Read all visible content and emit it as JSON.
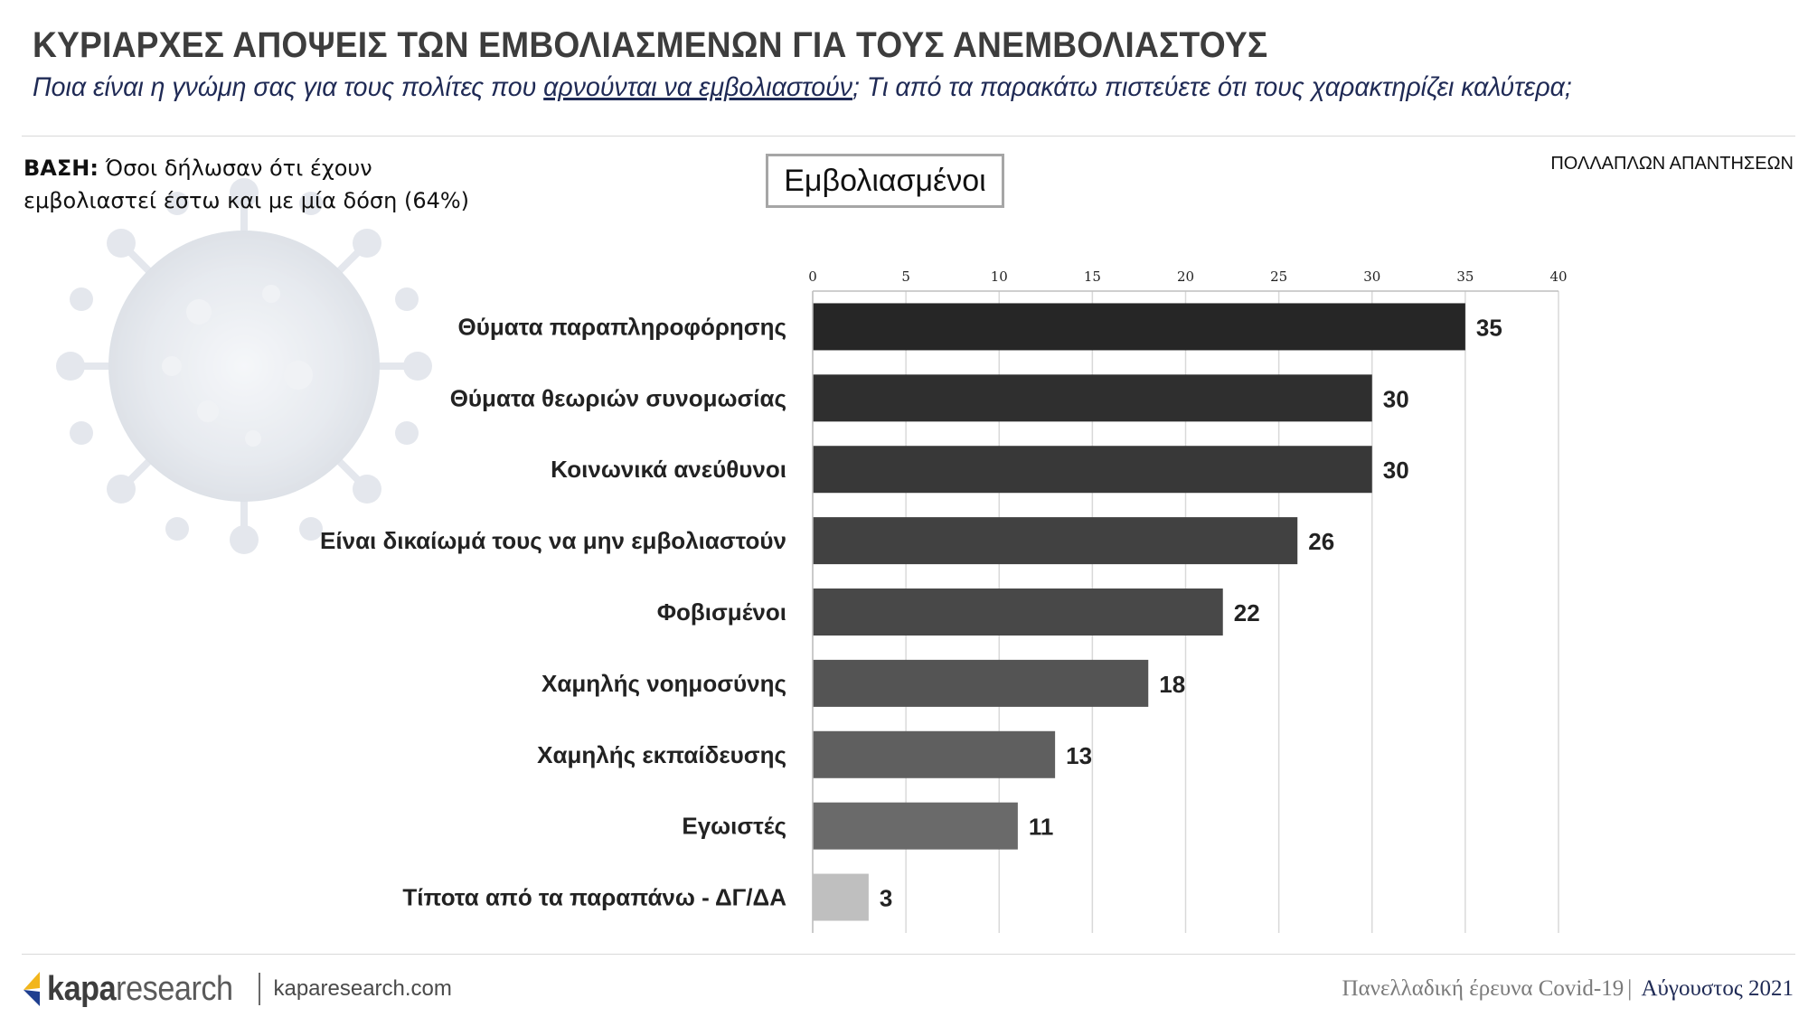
{
  "header": {
    "title": "ΚΥΡΙΑΡΧΕΣ ΑΠΟΨΕΙΣ ΤΩΝ ΕΜΒΟΛΙΑΣΜΕΝΩΝ ΓΙΑ ΤΟΥΣ ΑΝΕΜΒΟΛΙΑΣΤΟΥΣ",
    "subtitle_before": "Ποια είναι η γνώμη σας για τους πολίτες που ",
    "subtitle_underlined": "αρνούνται να εμβολιαστούν",
    "subtitle_after": "; Τι από τα παρακάτω πιστεύετε ότι τους χαρακτηρίζει καλύτερα;"
  },
  "base_note": {
    "label": "ΒΑΣΗ:",
    "line1": " Όσοι δήλωσαν ότι έχουν",
    "line2": "εμβολιαστεί έστω και με μία δόση (64%)"
  },
  "multi_answer_note": "ΠΟΛΛΑΠΛΩΝ ΑΠΑΝΤΗΣΕΩΝ",
  "group_label": "Εμβολιασμένοι",
  "chart_data": {
    "type": "bar",
    "orientation": "horizontal",
    "categories": [
      "Θύματα παραπληροφόρησης",
      "Θύματα θεωριών συνομωσίας",
      "Κοινωνικά ανεύθυνοι",
      "Είναι δικαίωμά τους να μην εμβολιαστούν",
      "Φοβισμένοι",
      "Χαμηλής νοημοσύνης",
      "Χαμηλής εκπαίδευσης",
      "Εγωιστές",
      "Τίποτα από τα παραπάνω - ΔΓ/ΔΑ"
    ],
    "values": [
      35,
      30,
      30,
      26,
      22,
      18,
      13,
      11,
      3
    ],
    "bar_colors": [
      "#262626",
      "#2f2f2f",
      "#383838",
      "#414141",
      "#484848",
      "#545454",
      "#5f5f5f",
      "#6a6a6a",
      "#bfbfbf"
    ],
    "xlim": [
      0,
      40
    ],
    "xticks": [
      "0",
      "5",
      "10",
      "15",
      "20",
      "25",
      "30",
      "35",
      "40"
    ],
    "grid": true,
    "axis_position": "top",
    "data_labels": [
      "35",
      "30",
      "30",
      "26",
      "22",
      "18",
      "13",
      "11",
      "3"
    ]
  },
  "footer": {
    "brand_bold": "kapa",
    "brand_rest": "research",
    "website": "kaparesearch.com",
    "survey": "Πανελλαδική έρευνα Covid-19",
    "separator": "|",
    "month": " Αύγουστος 2021"
  },
  "colors": {
    "title": "#3d3d3d",
    "subtitle": "#1f2a55",
    "grid": "#d9d9d9",
    "logo_yellow": "#f2b61c",
    "logo_blue": "#1f3f8f"
  }
}
